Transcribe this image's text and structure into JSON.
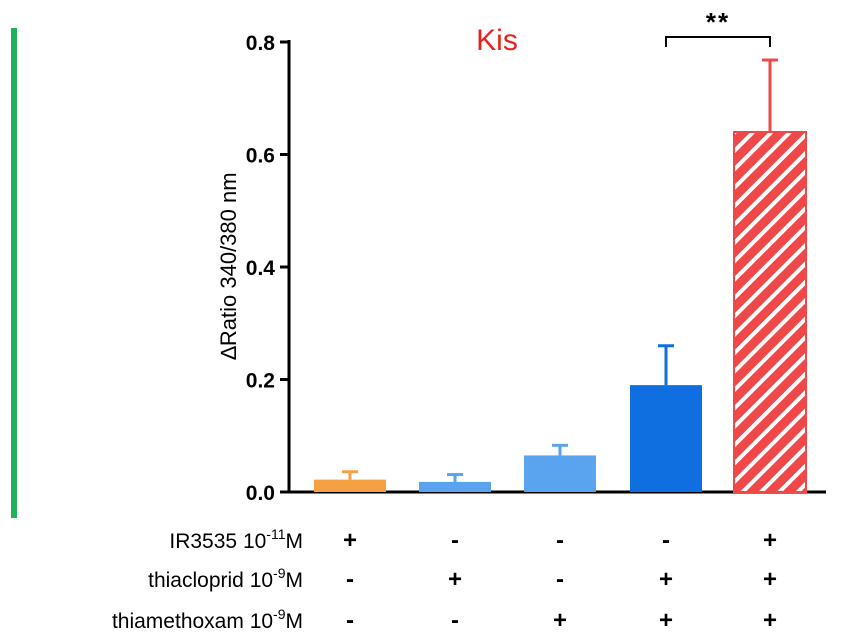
{
  "chart_data": {
    "type": "bar",
    "title": "Kis",
    "ylabel": "∆Ratio 340/380 nm",
    "ylim": [
      0,
      0.8
    ],
    "yticks": [
      "0.0",
      "0.2",
      "0.4",
      "0.6",
      "0.8"
    ],
    "values": [
      0.022,
      0.018,
      0.065,
      0.19,
      0.64
    ],
    "errors": [
      0.014,
      0.013,
      0.018,
      0.07,
      0.128
    ],
    "colors": [
      "#f5a042",
      "#5aa3ee",
      "#5aa3ee",
      "#0f6fe0",
      "#f04848"
    ],
    "hatched": [
      false,
      false,
      false,
      false,
      true
    ],
    "significance": {
      "label": "**",
      "from_bar": 3,
      "to_bar": 4
    },
    "conditions": [
      {
        "name": "IR3535 ",
        "exp_base": "10",
        "exp": "-11",
        "unit": "M",
        "signs": [
          "+",
          "-",
          "-",
          "-",
          "+"
        ]
      },
      {
        "name": "thiacloprid ",
        "exp_base": "10",
        "exp": "-9",
        "unit": "M",
        "signs": [
          "-",
          "+",
          "-",
          "+",
          "+"
        ]
      },
      {
        "name": "thiamethoxam ",
        "exp_base": "10",
        "exp": "-9",
        "unit": "M",
        "signs": [
          "-",
          "-",
          "+",
          "+",
          "+"
        ]
      }
    ]
  },
  "accent_colors": {
    "title": "#e8221b",
    "side_bar": "#1db35a"
  }
}
